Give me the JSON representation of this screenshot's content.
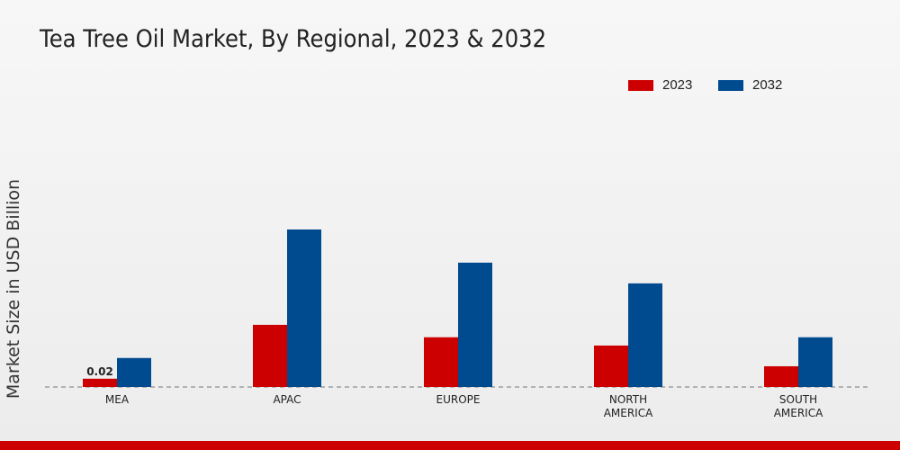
{
  "chart_data": {
    "type": "bar",
    "title": "Tea Tree Oil Market, By Regional, 2023 & 2032",
    "xlabel": "",
    "ylabel": "Market Size in USD Billion",
    "categories": [
      [
        "MEA"
      ],
      [
        "APAC"
      ],
      [
        "EUROPE"
      ],
      [
        "NORTH",
        "AMERICA"
      ],
      [
        "SOUTH",
        "AMERICA"
      ]
    ],
    "series": [
      {
        "name": "2023",
        "color": "#cc0000",
        "values": [
          0.02,
          0.15,
          0.12,
          0.1,
          0.05
        ]
      },
      {
        "name": "2032",
        "color": "#004a8f",
        "values": [
          0.07,
          0.38,
          0.3,
          0.25,
          0.12
        ]
      }
    ],
    "data_labels": [
      {
        "series": 0,
        "index": 0,
        "text": "0.02"
      }
    ],
    "ylim": [
      0,
      0.45
    ],
    "grid": false,
    "legend": "top-right"
  },
  "colors": {
    "bottom_bar": "#cc0000",
    "baseline": "#777777"
  }
}
